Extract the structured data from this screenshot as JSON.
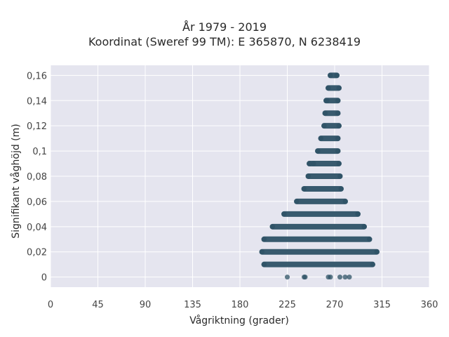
{
  "chart_data": {
    "type": "scatter",
    "title": "År 1979 - 2019",
    "subtitle": "Koordinat (Sweref 99 TM): E 365870, N 6238419",
    "xlabel": "Vågriktning (grader)",
    "ylabel": "Signifikant våghöjd (m)",
    "xlim": [
      0,
      360
    ],
    "ylim": [
      -0.008,
      0.168
    ],
    "x_ticks": [
      0,
      45,
      90,
      135,
      180,
      225,
      270,
      315,
      360
    ],
    "x_tick_labels": [
      "0",
      "45",
      "90",
      "135",
      "180",
      "225",
      "270",
      "315",
      "360"
    ],
    "y_ticks": [
      0,
      0.02,
      0.04,
      0.06,
      0.08,
      0.1,
      0.12,
      0.14,
      0.16
    ],
    "y_tick_labels": [
      "0",
      "0,02",
      "0,04",
      "0,06",
      "0,08",
      "0,1",
      "0,12",
      "0,14",
      "0,16"
    ],
    "grid": true,
    "marker_color": "#2e5266",
    "background_color": "#e5e5ef",
    "rows": [
      {
        "y": 0.16,
        "x_min": 266,
        "x_max": 272
      },
      {
        "y": 0.15,
        "x_min": 264,
        "x_max": 274
      },
      {
        "y": 0.14,
        "x_min": 262,
        "x_max": 273
      },
      {
        "y": 0.13,
        "x_min": 261,
        "x_max": 273
      },
      {
        "y": 0.12,
        "x_min": 260,
        "x_max": 274
      },
      {
        "y": 0.11,
        "x_min": 257,
        "x_max": 273
      },
      {
        "y": 0.1,
        "x_min": 254,
        "x_max": 273
      },
      {
        "y": 0.09,
        "x_min": 246,
        "x_max": 274
      },
      {
        "y": 0.08,
        "x_min": 245,
        "x_max": 275
      },
      {
        "y": 0.07,
        "x_min": 241,
        "x_max": 276
      },
      {
        "y": 0.06,
        "x_min": 234,
        "x_max": 280
      },
      {
        "y": 0.05,
        "x_min": 222,
        "x_max": 292
      },
      {
        "y": 0.04,
        "x_min": 211,
        "x_max": 298
      },
      {
        "y": 0.03,
        "x_min": 203,
        "x_max": 303
      },
      {
        "y": 0.02,
        "x_min": 201,
        "x_max": 310
      },
      {
        "y": 0.01,
        "x_min": 203,
        "x_max": 306
      }
    ],
    "isolated_points": [
      {
        "x": 225,
        "y": 0
      },
      {
        "x": 241,
        "y": 0
      },
      {
        "x": 242,
        "y": 0
      },
      {
        "x": 264,
        "y": 0
      },
      {
        "x": 266,
        "y": 0
      },
      {
        "x": 275,
        "y": 0
      },
      {
        "x": 280,
        "y": 0
      },
      {
        "x": 284,
        "y": 0
      },
      {
        "x": 263,
        "y": 0.14
      },
      {
        "x": 250,
        "y": 0.09
      },
      {
        "x": 292,
        "y": 0.05
      },
      {
        "x": 298,
        "y": 0.04
      }
    ]
  }
}
